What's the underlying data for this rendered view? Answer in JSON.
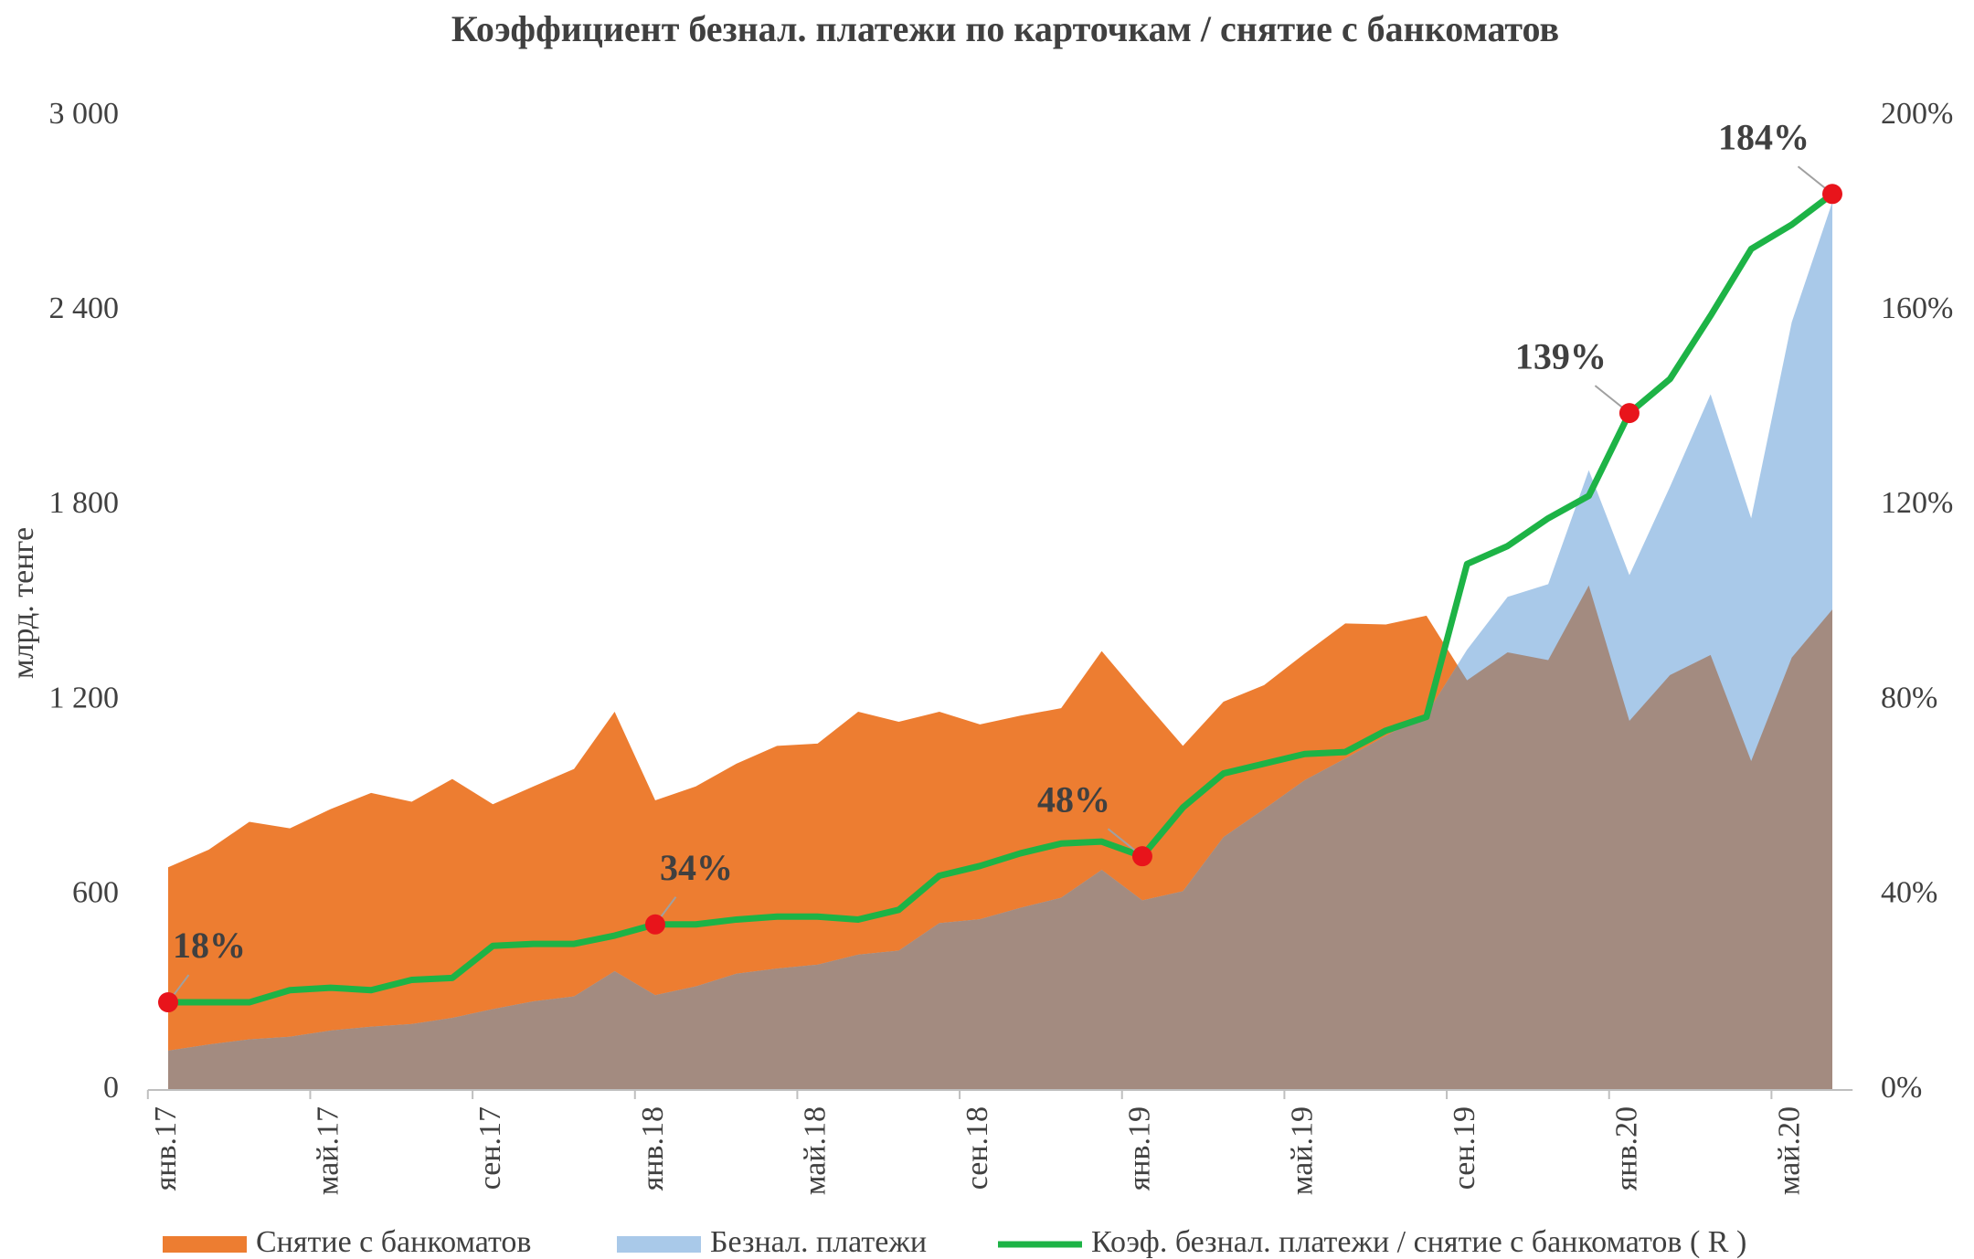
{
  "chart_data": {
    "type": "area",
    "title": "Коэффициент безнал. платежи по карточкам / снятие с банкоматов",
    "y_label": "млрд. тенге",
    "categories": [
      "янв.17",
      null,
      null,
      null,
      "май.17",
      null,
      null,
      null,
      "сен.17",
      null,
      null,
      null,
      "янв.18",
      null,
      null,
      null,
      "май.18",
      null,
      null,
      null,
      "сен.18",
      null,
      null,
      null,
      "янв.19",
      null,
      null,
      null,
      "май.19",
      null,
      null,
      null,
      "сен.19",
      null,
      null,
      null,
      "янв.20",
      null,
      null,
      null,
      "май.20",
      null
    ],
    "ylim": [
      0,
      3000
    ],
    "yticks": [
      0,
      600,
      {
        "value": 1200,
        "label": "1 200"
      },
      {
        "value": 1800,
        "label": "1 800"
      },
      {
        "value": 2400,
        "label": "2 400"
      },
      {
        "value": 3000,
        "label": "3 000"
      }
    ],
    "y2lim": [
      0,
      200
    ],
    "y2ticks": [
      {
        "value": 0,
        "label": "0%"
      },
      {
        "value": 40,
        "label": "40%"
      },
      {
        "value": 80,
        "label": "80%"
      },
      {
        "value": 120,
        "label": "120%"
      },
      {
        "value": 160,
        "label": "160%"
      },
      {
        "value": 200,
        "label": "200%"
      }
    ],
    "overlap_color": "#a38b80",
    "marker_color": "#e8141b",
    "series": [
      {
        "name": "Снятие с банкоматов",
        "color": "#ed7d31",
        "values": [
          686,
          740,
          826,
          806,
          865,
          915,
          888,
          958,
          880,
          935,
          989,
          1165,
          892,
          935,
          1005,
          1060,
          1067,
          1165,
          1134,
          1165,
          1126,
          1153,
          1176,
          1352,
          1204,
          1060,
          1196,
          1247,
          1344,
          1437,
          1434,
          1461,
          1262,
          1348,
          1324,
          1554,
          1137,
          1278,
          1340,
          1013,
          1332,
          1480
        ]
      },
      {
        "name": "Безнал. платежи",
        "color": "#a9c9e9",
        "values": [
          121,
          140,
          156,
          164,
          183,
          195,
          203,
          222,
          249,
          273,
          288,
          366,
          292,
          319,
          358,
          374,
          386,
          417,
          429,
          514,
          526,
          561,
          592,
          678,
          584,
          612,
          779,
          865,
          954,
          1021,
          1091,
          1157,
          1356,
          1519,
          1558,
          1909,
          1586,
          1858,
          2143,
          1761,
          2365,
          2735
        ]
      },
      {
        "name": "Коэф. безнал. платежи / снятие с банкоматов ( R )",
        "color": "#1db346",
        "type": "line",
        "axis": "y2",
        "values": [
          18,
          18,
          18,
          20.5,
          21,
          20.5,
          22.6,
          23,
          29.6,
          30,
          30,
          31.7,
          34,
          34,
          35,
          35.6,
          35.6,
          35,
          37,
          44,
          46,
          48.6,
          50.6,
          51,
          48,
          58,
          65,
          67,
          69,
          69.4,
          73.8,
          76.6,
          108,
          111.7,
          117.4,
          122,
          139,
          146,
          159,
          172.7,
          177.7,
          184
        ],
        "value_labels": [
          "18%",
          null,
          null,
          null,
          null,
          null,
          null,
          null,
          null,
          null,
          null,
          null,
          "34%",
          null,
          null,
          null,
          null,
          null,
          null,
          null,
          null,
          null,
          null,
          null,
          "48%",
          null,
          null,
          null,
          null,
          null,
          null,
          null,
          null,
          null,
          null,
          null,
          "139%",
          null,
          null,
          null,
          null,
          "184%"
        ]
      }
    ]
  }
}
